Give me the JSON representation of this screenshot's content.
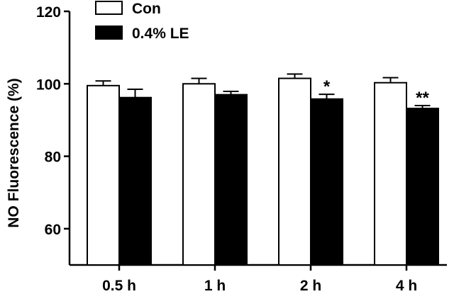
{
  "chart_data": {
    "type": "bar",
    "title": "",
    "xlabel": "",
    "ylabel": "NO Fluorescence (%)",
    "ylim": [
      50,
      120
    ],
    "yticks": [
      60,
      80,
      100,
      120
    ],
    "categories": [
      "0.5 h",
      "1 h",
      "2 h",
      "4 h"
    ],
    "legend_position": "top-left",
    "grid": false,
    "series": [
      {
        "name": "Con",
        "color": "#ffffff",
        "values": [
          99.5,
          100.0,
          101.5,
          100.3
        ],
        "errors": [
          1.3,
          1.5,
          1.2,
          1.4
        ],
        "annotations": [
          "",
          "",
          "",
          ""
        ]
      },
      {
        "name": "0.4% LE",
        "color": "#000000",
        "values": [
          96.2,
          97.0,
          95.8,
          93.2
        ],
        "errors": [
          2.3,
          0.9,
          1.3,
          0.8
        ],
        "annotations": [
          "",
          "",
          "*",
          "**"
        ]
      }
    ]
  }
}
